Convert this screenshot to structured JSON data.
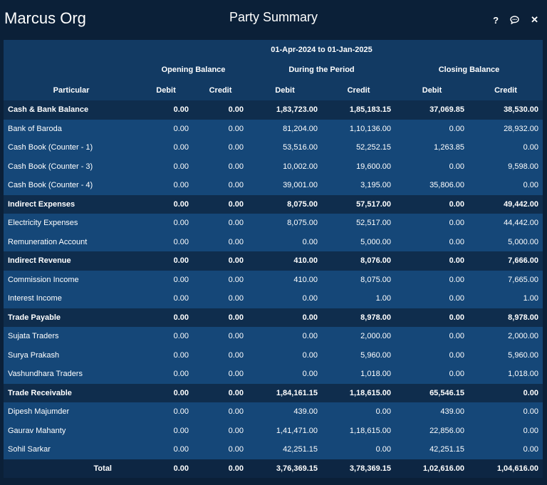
{
  "window": {
    "org_name": "Marcus Org",
    "title": "Party Summary",
    "icons": [
      "help-icon",
      "chat-icon",
      "close-icon"
    ]
  },
  "header": {
    "period": "01-Apr-2024 to 01-Jan-2025",
    "opening_balance": "Opening Balance",
    "during_period": "During the Period",
    "closing_balance": "Closing Balance",
    "particular": "Particular",
    "debit": "Debit",
    "credit": "Credit"
  },
  "rows": [
    {
      "type": "group",
      "name": "Cash & Bank Balance",
      "od": "0.00",
      "oc": "0.00",
      "pd": "1,83,723.00",
      "pc": "1,85,183.15",
      "cd": "37,069.85",
      "cc": "38,530.00"
    },
    {
      "type": "item",
      "name": "Bank of Baroda",
      "od": "0.00",
      "oc": "0.00",
      "pd": "81,204.00",
      "pc": "1,10,136.00",
      "cd": "0.00",
      "cc": "28,932.00"
    },
    {
      "type": "item",
      "name": "Cash Book (Counter - 1)",
      "od": "0.00",
      "oc": "0.00",
      "pd": "53,516.00",
      "pc": "52,252.15",
      "cd": "1,263.85",
      "cc": "0.00"
    },
    {
      "type": "item",
      "name": "Cash Book (Counter - 3)",
      "od": "0.00",
      "oc": "0.00",
      "pd": "10,002.00",
      "pc": "19,600.00",
      "cd": "0.00",
      "cc": "9,598.00"
    },
    {
      "type": "item",
      "name": "Cash Book (Counter - 4)",
      "od": "0.00",
      "oc": "0.00",
      "pd": "39,001.00",
      "pc": "3,195.00",
      "cd": "35,806.00",
      "cc": "0.00"
    },
    {
      "type": "group",
      "name": "Indirect Expenses",
      "od": "0.00",
      "oc": "0.00",
      "pd": "8,075.00",
      "pc": "57,517.00",
      "cd": "0.00",
      "cc": "49,442.00"
    },
    {
      "type": "item",
      "name": "Electricity Expenses",
      "od": "0.00",
      "oc": "0.00",
      "pd": "8,075.00",
      "pc": "52,517.00",
      "cd": "0.00",
      "cc": "44,442.00"
    },
    {
      "type": "item",
      "name": "Remuneration Account",
      "od": "0.00",
      "oc": "0.00",
      "pd": "0.00",
      "pc": "5,000.00",
      "cd": "0.00",
      "cc": "5,000.00"
    },
    {
      "type": "group",
      "name": "Indirect Revenue",
      "od": "0.00",
      "oc": "0.00",
      "pd": "410.00",
      "pc": "8,076.00",
      "cd": "0.00",
      "cc": "7,666.00"
    },
    {
      "type": "item",
      "name": "Commission Income",
      "od": "0.00",
      "oc": "0.00",
      "pd": "410.00",
      "pc": "8,075.00",
      "cd": "0.00",
      "cc": "7,665.00"
    },
    {
      "type": "item",
      "name": "Interest Income",
      "od": "0.00",
      "oc": "0.00",
      "pd": "0.00",
      "pc": "1.00",
      "cd": "0.00",
      "cc": "1.00"
    },
    {
      "type": "group",
      "name": "Trade Payable",
      "od": "0.00",
      "oc": "0.00",
      "pd": "0.00",
      "pc": "8,978.00",
      "cd": "0.00",
      "cc": "8,978.00"
    },
    {
      "type": "item",
      "name": "Sujata Traders",
      "od": "0.00",
      "oc": "0.00",
      "pd": "0.00",
      "pc": "2,000.00",
      "cd": "0.00",
      "cc": "2,000.00"
    },
    {
      "type": "item",
      "name": "Surya Prakash",
      "od": "0.00",
      "oc": "0.00",
      "pd": "0.00",
      "pc": "5,960.00",
      "cd": "0.00",
      "cc": "5,960.00"
    },
    {
      "type": "item",
      "name": "Vashundhara Traders",
      "od": "0.00",
      "oc": "0.00",
      "pd": "0.00",
      "pc": "1,018.00",
      "cd": "0.00",
      "cc": "1,018.00"
    },
    {
      "type": "group",
      "name": "Trade Receivable",
      "od": "0.00",
      "oc": "0.00",
      "pd": "1,84,161.15",
      "pc": "1,18,615.00",
      "cd": "65,546.15",
      "cc": "0.00"
    },
    {
      "type": "item",
      "name": "Dipesh Majumder",
      "od": "0.00",
      "oc": "0.00",
      "pd": "439.00",
      "pc": "0.00",
      "cd": "439.00",
      "cc": "0.00"
    },
    {
      "type": "item",
      "name": "Gaurav Mahanty",
      "od": "0.00",
      "oc": "0.00",
      "pd": "1,41,471.00",
      "pc": "1,18,615.00",
      "cd": "22,856.00",
      "cc": "0.00"
    },
    {
      "type": "item",
      "name": "Sohil Sarkar",
      "od": "0.00",
      "oc": "0.00",
      "pd": "42,251.15",
      "pc": "0.00",
      "cd": "42,251.15",
      "cc": "0.00"
    }
  ],
  "total": {
    "label": "Total",
    "od": "0.00",
    "oc": "0.00",
    "pd": "3,76,369.15",
    "pc": "3,78,369.15",
    "cd": "1,02,616.00",
    "cc": "1,04,616.00"
  }
}
